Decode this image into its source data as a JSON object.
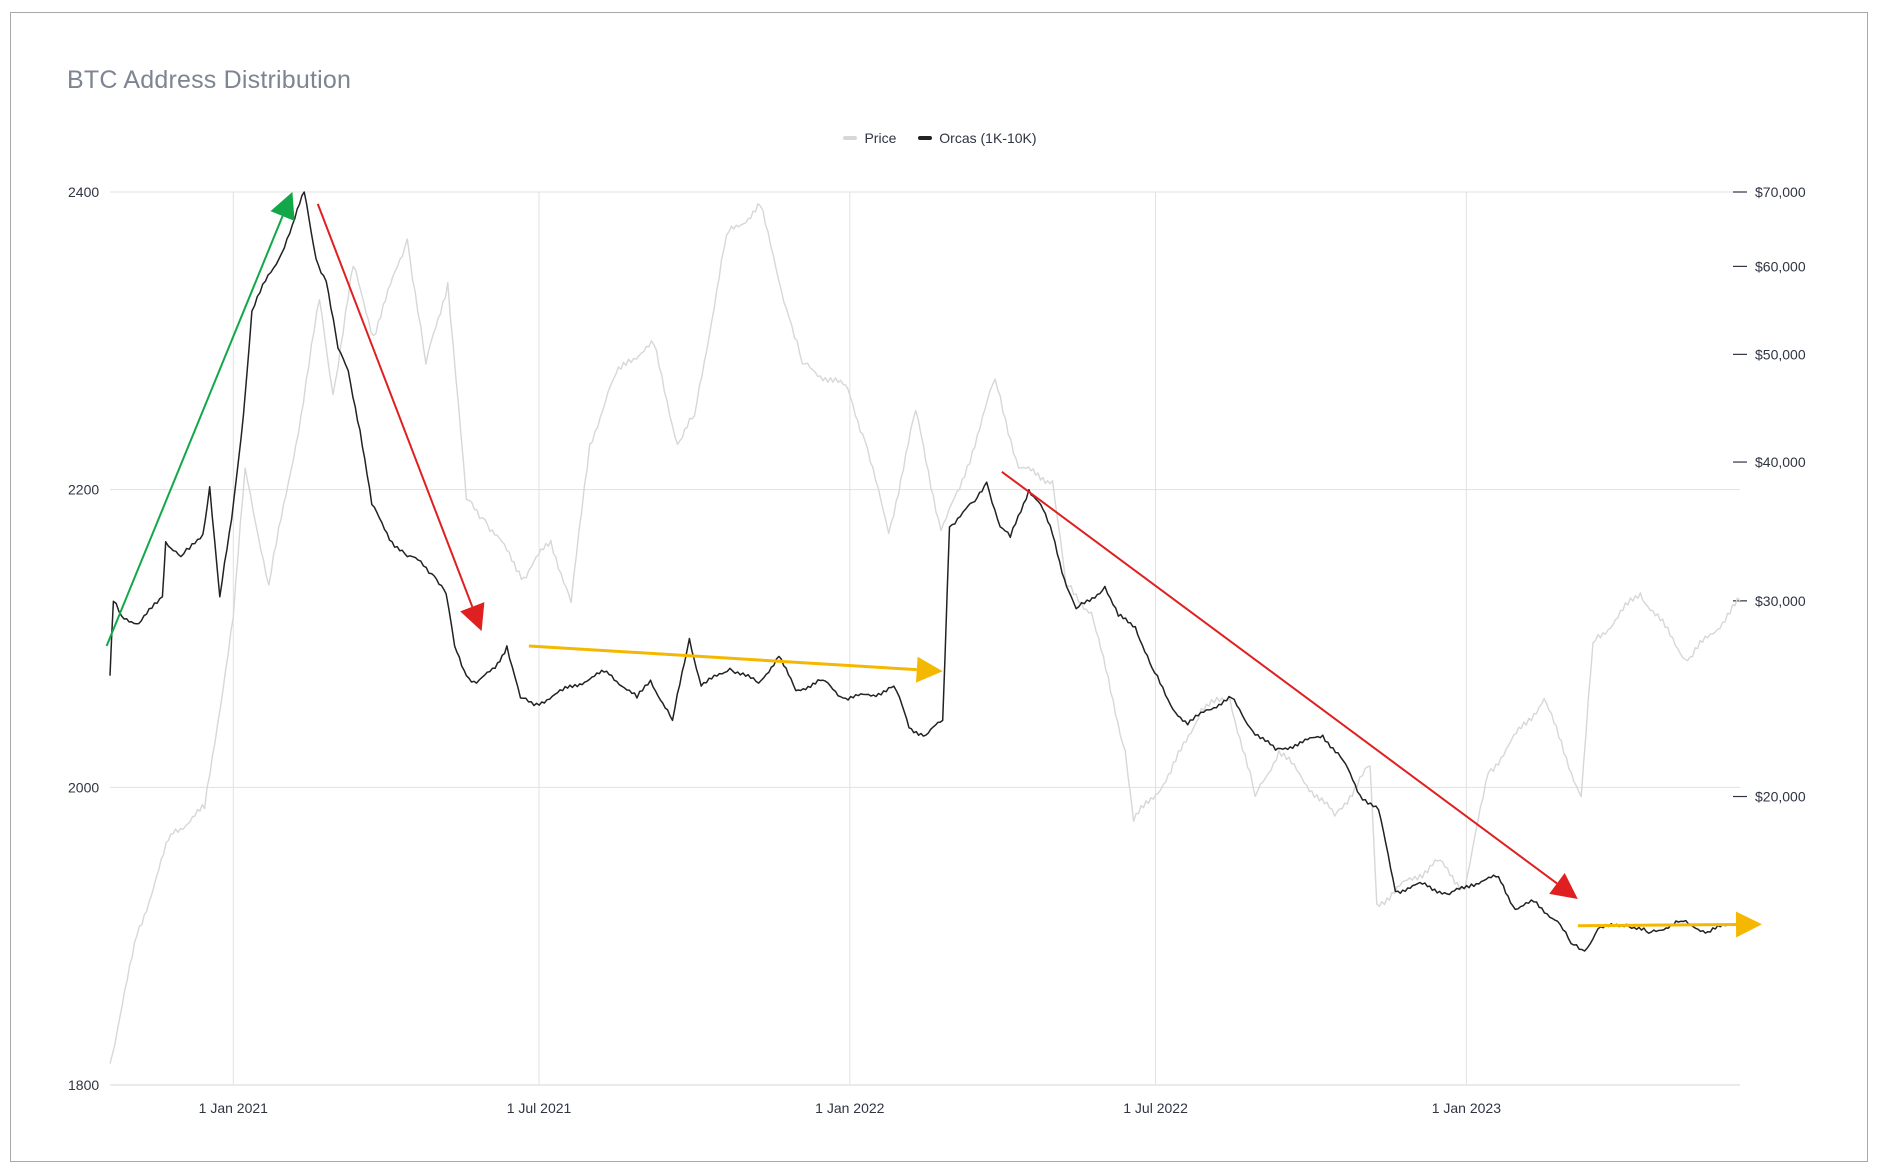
{
  "chart_data": {
    "type": "line",
    "title": "BTC Address Distribution",
    "legend_position": "top-center",
    "grid": true,
    "x_range": [
      "2020-10-20",
      "2023-06-12"
    ],
    "x_ticks": [
      {
        "date": "2021-01-01",
        "label": "1 Jan 2021"
      },
      {
        "date": "2021-07-01",
        "label": "1 Jul 2021"
      },
      {
        "date": "2022-01-01",
        "label": "1 Jan 2022"
      },
      {
        "date": "2022-07-01",
        "label": "1 Jul 2022"
      },
      {
        "date": "2023-01-01",
        "label": "1 Jan 2023"
      }
    ],
    "y_left": {
      "min": 1800,
      "max": 2400,
      "ticks": [
        {
          "value": 1800,
          "label": "1800"
        },
        {
          "value": 2000,
          "label": "2000"
        },
        {
          "value": 2200,
          "label": "2200"
        },
        {
          "value": 2400,
          "label": "2400"
        }
      ]
    },
    "y_right": {
      "scale": "log",
      "min": 11000,
      "max": 70000,
      "ticks": [
        {
          "value": 20000,
          "label": "$20,000"
        },
        {
          "value": 30000,
          "label": "$30,000"
        },
        {
          "value": 40000,
          "label": "$40,000"
        },
        {
          "value": 50000,
          "label": "$50,000"
        },
        {
          "value": 60000,
          "label": "$60,000"
        },
        {
          "value": 70000,
          "label": "$70,000"
        }
      ]
    },
    "series": [
      {
        "name": "Price",
        "axis": "right",
        "color": "#d7d7d7",
        "points": [
          [
            "2020-10-20",
            11500
          ],
          [
            "2020-11-05",
            15000
          ],
          [
            "2020-11-25",
            18500
          ],
          [
            "2020-12-15",
            19500
          ],
          [
            "2021-01-01",
            29000
          ],
          [
            "2021-01-08",
            39500
          ],
          [
            "2021-01-22",
            31000
          ],
          [
            "2021-02-10",
            44000
          ],
          [
            "2021-02-21",
            56000
          ],
          [
            "2021-03-01",
            46000
          ],
          [
            "2021-03-13",
            60000
          ],
          [
            "2021-03-25",
            52000
          ],
          [
            "2021-04-14",
            63500
          ],
          [
            "2021-04-25",
            49000
          ],
          [
            "2021-05-08",
            58000
          ],
          [
            "2021-05-19",
            37000
          ],
          [
            "2021-05-30",
            35500
          ],
          [
            "2021-06-22",
            31500
          ],
          [
            "2021-07-08",
            34000
          ],
          [
            "2021-07-20",
            29900
          ],
          [
            "2021-07-31",
            41500
          ],
          [
            "2021-08-14",
            47500
          ],
          [
            "2021-08-23",
            49500
          ],
          [
            "2021-09-07",
            51000
          ],
          [
            "2021-09-21",
            41500
          ],
          [
            "2021-10-01",
            44000
          ],
          [
            "2021-10-20",
            64000
          ],
          [
            "2021-11-09",
            68000
          ],
          [
            "2021-11-26",
            54000
          ],
          [
            "2021-12-04",
            49000
          ],
          [
            "2021-12-31",
            46500
          ],
          [
            "2022-01-10",
            41800
          ],
          [
            "2022-01-24",
            34500
          ],
          [
            "2022-02-09",
            44500
          ],
          [
            "2022-02-24",
            34700
          ],
          [
            "2022-03-07",
            37800
          ],
          [
            "2022-03-28",
            47500
          ],
          [
            "2022-04-11",
            39500
          ],
          [
            "2022-05-01",
            38500
          ],
          [
            "2022-05-09",
            31000
          ],
          [
            "2022-05-24",
            29300
          ],
          [
            "2022-06-13",
            22000
          ],
          [
            "2022-06-18",
            19000
          ],
          [
            "2022-07-10",
            21000
          ],
          [
            "2022-07-28",
            24000
          ],
          [
            "2022-08-14",
            24500
          ],
          [
            "2022-08-29",
            20000
          ],
          [
            "2022-09-12",
            22000
          ],
          [
            "2022-10-15",
            19200
          ],
          [
            "2022-11-05",
            21300
          ],
          [
            "2022-11-09",
            16000
          ],
          [
            "2022-12-15",
            17500
          ],
          [
            "2022-12-31",
            16500
          ],
          [
            "2023-01-14",
            21000
          ],
          [
            "2023-02-16",
            24500
          ],
          [
            "2023-03-10",
            20000
          ],
          [
            "2023-03-17",
            27500
          ],
          [
            "2023-04-14",
            30500
          ],
          [
            "2023-05-12",
            26500
          ],
          [
            "2023-06-12",
            30000
          ]
        ]
      },
      {
        "name": "Orcas (1K-10K)",
        "axis": "left",
        "color": "#222222",
        "points": [
          [
            "2020-10-20",
            2075
          ],
          [
            "2020-10-22",
            2125
          ],
          [
            "2020-10-27",
            2115
          ],
          [
            "2020-11-06",
            2110
          ],
          [
            "2020-11-20",
            2128
          ],
          [
            "2020-11-22",
            2165
          ],
          [
            "2020-12-01",
            2155
          ],
          [
            "2020-12-06",
            2160
          ],
          [
            "2020-12-14",
            2170
          ],
          [
            "2020-12-18",
            2202
          ],
          [
            "2020-12-24",
            2128
          ],
          [
            "2020-12-31",
            2180
          ],
          [
            "2021-01-07",
            2250
          ],
          [
            "2021-01-12",
            2320
          ],
          [
            "2021-01-20",
            2340
          ],
          [
            "2021-01-28",
            2355
          ],
          [
            "2021-02-05",
            2378
          ],
          [
            "2021-02-12",
            2400
          ],
          [
            "2021-02-19",
            2355
          ],
          [
            "2021-02-25",
            2340
          ],
          [
            "2021-03-04",
            2295
          ],
          [
            "2021-03-10",
            2280
          ],
          [
            "2021-03-17",
            2240
          ],
          [
            "2021-03-24",
            2190
          ],
          [
            "2021-04-05",
            2165
          ],
          [
            "2021-04-14",
            2155
          ],
          [
            "2021-04-22",
            2152
          ],
          [
            "2021-04-30",
            2142
          ],
          [
            "2021-05-07",
            2130
          ],
          [
            "2021-05-12",
            2095
          ],
          [
            "2021-05-19",
            2075
          ],
          [
            "2021-05-25",
            2070
          ],
          [
            "2021-06-05",
            2080
          ],
          [
            "2021-06-12",
            2095
          ],
          [
            "2021-06-20",
            2060
          ],
          [
            "2021-06-28",
            2055
          ],
          [
            "2021-07-15",
            2065
          ],
          [
            "2021-08-10",
            2078
          ],
          [
            "2021-08-28",
            2060
          ],
          [
            "2021-09-05",
            2072
          ],
          [
            "2021-09-18",
            2045
          ],
          [
            "2021-09-28",
            2100
          ],
          [
            "2021-10-05",
            2068
          ],
          [
            "2021-10-22",
            2080
          ],
          [
            "2021-11-08",
            2070
          ],
          [
            "2021-11-20",
            2088
          ],
          [
            "2021-11-30",
            2065
          ],
          [
            "2021-12-16",
            2072
          ],
          [
            "2021-12-28",
            2060
          ],
          [
            "2022-01-15",
            2062
          ],
          [
            "2022-01-27",
            2068
          ],
          [
            "2022-02-01",
            2055
          ],
          [
            "2022-02-05",
            2040
          ],
          [
            "2022-02-15",
            2035
          ],
          [
            "2022-02-25",
            2045
          ],
          [
            "2022-03-01",
            2175
          ],
          [
            "2022-03-09",
            2185
          ],
          [
            "2022-03-16",
            2192
          ],
          [
            "2022-03-23",
            2205
          ],
          [
            "2022-03-31",
            2175
          ],
          [
            "2022-04-06",
            2168
          ],
          [
            "2022-04-17",
            2200
          ],
          [
            "2022-04-24",
            2190
          ],
          [
            "2022-05-01",
            2170
          ],
          [
            "2022-05-08",
            2140
          ],
          [
            "2022-05-15",
            2120
          ],
          [
            "2022-05-23",
            2125
          ],
          [
            "2022-06-01",
            2135
          ],
          [
            "2022-06-09",
            2115
          ],
          [
            "2022-06-19",
            2108
          ],
          [
            "2022-06-29",
            2080
          ],
          [
            "2022-07-10",
            2055
          ],
          [
            "2022-07-20",
            2042
          ],
          [
            "2022-07-31",
            2052
          ],
          [
            "2022-08-15",
            2060
          ],
          [
            "2022-08-26",
            2040
          ],
          [
            "2022-09-10",
            2025
          ],
          [
            "2022-09-26",
            2030
          ],
          [
            "2022-10-08",
            2035
          ],
          [
            "2022-10-20",
            2018
          ],
          [
            "2022-10-30",
            1995
          ],
          [
            "2022-11-10",
            1985
          ],
          [
            "2022-11-20",
            1930
          ],
          [
            "2022-12-06",
            1935
          ],
          [
            "2022-12-22",
            1928
          ],
          [
            "2023-01-04",
            1935
          ],
          [
            "2023-01-20",
            1940
          ],
          [
            "2023-01-30",
            1918
          ],
          [
            "2023-02-10",
            1923
          ],
          [
            "2023-02-24",
            1910
          ],
          [
            "2023-03-04",
            1895
          ],
          [
            "2023-03-12",
            1890
          ],
          [
            "2023-03-20",
            1905
          ],
          [
            "2023-04-06",
            1908
          ],
          [
            "2023-04-19",
            1902
          ],
          [
            "2023-05-08",
            1910
          ],
          [
            "2023-05-24",
            1903
          ],
          [
            "2023-06-12",
            1910
          ]
        ]
      }
    ],
    "annotations": [
      {
        "shape": "arrow",
        "color": "#12a84a",
        "from": [
          "2020-10-18",
          2095
        ],
        "to": [
          "2021-02-05",
          2400
        ]
      },
      {
        "shape": "arrow",
        "color": "#e02020",
        "from": [
          "2021-02-20",
          2392
        ],
        "to": [
          "2021-05-28",
          2105
        ]
      },
      {
        "shape": "arrow",
        "color": "#f5b800",
        "from": [
          "2021-06-25",
          2095
        ],
        "to": [
          "2022-02-25",
          2078
        ]
      },
      {
        "shape": "arrow",
        "color": "#e02020",
        "from": [
          "2022-04-01",
          2212
        ],
        "to": [
          "2023-03-08",
          1925
        ]
      },
      {
        "shape": "arrow",
        "color": "#f5b800",
        "from": [
          "2023-03-08",
          1907
        ],
        "to": [
          "2023-06-25",
          1908
        ]
      }
    ]
  }
}
